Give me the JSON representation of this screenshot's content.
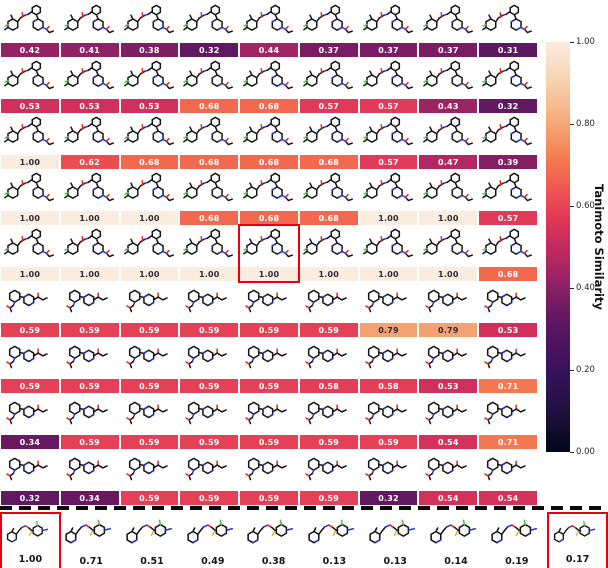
{
  "chart_data": {
    "type": "heatmap",
    "title": "",
    "colorbar_label": "Tanimoto Similarity",
    "colorbar_ticks": [
      1.0,
      0.8,
      0.6,
      0.4,
      0.2,
      0.0
    ],
    "vmin": 0.0,
    "vmax": 1.0,
    "value_format": "2dp",
    "matrix": [
      [
        0.42,
        0.41,
        0.38,
        0.32,
        0.44,
        0.37,
        0.37,
        0.37,
        0.31
      ],
      [
        0.53,
        0.53,
        0.53,
        0.68,
        0.68,
        0.57,
        0.57,
        0.43,
        0.32
      ],
      [
        1.0,
        0.62,
        0.68,
        0.68,
        0.68,
        0.68,
        0.57,
        0.47,
        0.39
      ],
      [
        1.0,
        1.0,
        1.0,
        0.68,
        0.68,
        0.68,
        1.0,
        1.0,
        0.57
      ],
      [
        1.0,
        1.0,
        1.0,
        1.0,
        1.0,
        1.0,
        1.0,
        1.0,
        0.68
      ],
      [
        0.59,
        0.59,
        0.59,
        0.59,
        0.59,
        0.59,
        0.79,
        0.79,
        0.53
      ],
      [
        0.59,
        0.59,
        0.59,
        0.59,
        0.59,
        0.58,
        0.58,
        0.53,
        0.71
      ],
      [
        0.34,
        0.59,
        0.59,
        0.59,
        0.59,
        0.59,
        0.59,
        0.54,
        0.71
      ],
      [
        0.32,
        0.34,
        0.59,
        0.59,
        0.59,
        0.59,
        0.32,
        0.54,
        0.54
      ]
    ],
    "bottom_row": [
      1.0,
      0.71,
      0.51,
      0.49,
      0.38,
      0.13,
      0.13,
      0.14,
      0.19,
      0.17
    ],
    "highlighted": {
      "grid_cell": {
        "row": 5,
        "col": 5
      },
      "bottom_cells": [
        1,
        10
      ]
    }
  },
  "molecule_variants": {
    "grid_rows_1_to_5": "large-bicyclic-molecule",
    "grid_rows_6_to_9": "small-piperazine-molecule",
    "bottom_row": "linear-thioester-molecule"
  },
  "colors": {
    "highlight_box": "#e60012",
    "bar_text_light": "#ffffff",
    "bar_text_dark": "#2b2b38",
    "dash_line": "#0b0b0b",
    "atom_bond": "#141414",
    "atom_nitrogen": "#2730d8",
    "atom_oxygen": "#e32212",
    "atom_halogen": "#3fc43f",
    "atom_sulfur": "#d6c11a"
  },
  "colormap": {
    "name": "rocket",
    "stops": [
      [
        0.0,
        "#03051A"
      ],
      [
        0.1,
        "#1F113F"
      ],
      [
        0.2,
        "#38125B"
      ],
      [
        0.3,
        "#571660"
      ],
      [
        0.35,
        "#6D1A61"
      ],
      [
        0.4,
        "#8A2065"
      ],
      [
        0.45,
        "#A82664"
      ],
      [
        0.5,
        "#C32A5F"
      ],
      [
        0.55,
        "#D93458"
      ],
      [
        0.6,
        "#E84455"
      ],
      [
        0.65,
        "#F05B50"
      ],
      [
        0.7,
        "#F3734F"
      ],
      [
        0.75,
        "#F48E60"
      ],
      [
        0.8,
        "#F5A776"
      ],
      [
        0.85,
        "#F6BD92"
      ],
      [
        0.9,
        "#F7D0AE"
      ],
      [
        0.95,
        "#F9DFC8"
      ],
      [
        1.0,
        "#FAECDE"
      ]
    ],
    "dark_text_threshold": 0.75
  }
}
